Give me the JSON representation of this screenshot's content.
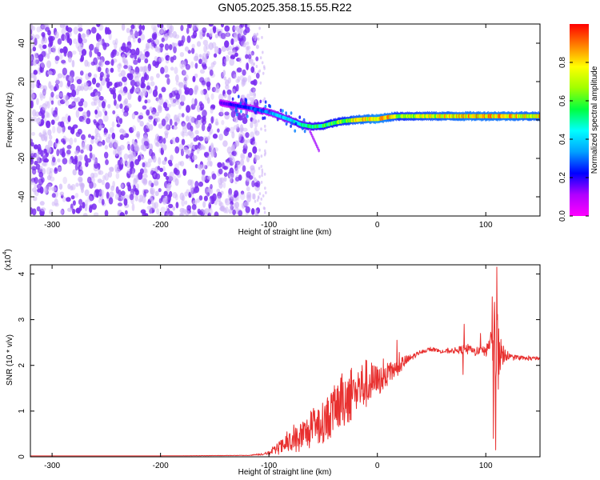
{
  "title": "GN05.2025.358.15.55.R22",
  "colors": {
    "line": "#e8302f",
    "axis": "#000000",
    "colorbar": [
      "#ff00ff",
      "#b000ff",
      "#0000ff",
      "#00a0ff",
      "#00ffff",
      "#00ff40",
      "#a0ff00",
      "#ffff00",
      "#ff8000",
      "#ff0000"
    ],
    "spectro_noise": "#7a2cf0",
    "spectro_noise_light": "#cdb3f7"
  },
  "chart_data": [
    {
      "type": "heatmap",
      "title": "GN05.2025.358.15.55.R22",
      "xlabel": "Height of straight line (km)",
      "ylabel": "Frequency (Hz)",
      "xlim": [
        -320,
        150
      ],
      "ylim": [
        -50,
        50
      ],
      "xticks": [
        -300,
        -200,
        -100,
        0,
        100
      ],
      "xtick_labels": [
        "-300",
        "-200",
        "-100",
        "0",
        "100"
      ],
      "yticks": [
        -40,
        -20,
        0,
        20,
        40
      ],
      "ytick_labels": [
        "-40",
        "-20",
        "0",
        "20",
        "40"
      ],
      "noise_region": [
        -320,
        -110
      ],
      "ridge": {
        "x": [
          -145,
          -130,
          -115,
          -100,
          -90,
          -80,
          -70,
          -60,
          -50,
          -40,
          -30,
          -20,
          -10,
          0,
          10,
          20,
          40,
          60,
          80,
          100,
          120,
          150
        ],
        "freq": [
          9,
          7.5,
          6,
          4,
          2,
          0,
          -2.5,
          -3.5,
          -3,
          -1.5,
          -0.5,
          0,
          0.5,
          0.5,
          1.5,
          2,
          2,
          2,
          2,
          2,
          2,
          2
        ],
        "amp": [
          0.15,
          0.22,
          0.3,
          0.35,
          0.4,
          0.45,
          0.5,
          0.55,
          0.6,
          0.65,
          0.7,
          0.8,
          0.85,
          0.9,
          0.85,
          0.7,
          0.75,
          0.8,
          0.85,
          0.85,
          0.85,
          0.8
        ]
      },
      "colorbar": {
        "label": "Normalized spectral amplitude",
        "range": [
          0,
          1
        ],
        "ticks": [
          "0.0",
          "0.2",
          "0.4",
          "0.6",
          "0.8"
        ]
      }
    },
    {
      "type": "line",
      "xlabel": "Height of straight line (km)",
      "ylabel": "SNR (10 * v/v)",
      "scale_label": "(x10",
      "scale_exp": "4",
      "xlim": [
        -320,
        150
      ],
      "ylim": [
        0,
        4.2
      ],
      "xticks": [
        -300,
        -200,
        -100,
        0,
        100
      ],
      "xtick_labels": [
        "-300",
        "-200",
        "-100",
        "0",
        "100"
      ],
      "yticks": [
        0,
        1,
        2,
        3,
        4
      ],
      "ytick_labels": [
        "0",
        "1",
        "2",
        "3",
        "4"
      ],
      "series": [
        {
          "name": "SNR",
          "x": [
            -320,
            -200,
            -120,
            -110,
            -100,
            -90,
            -80,
            -70,
            -60,
            -50,
            -40,
            -30,
            -20,
            -10,
            0,
            10,
            20,
            30,
            40,
            50,
            60,
            70,
            80,
            90,
            100,
            105,
            108,
            110,
            112,
            115,
            120,
            130,
            150
          ],
          "y": [
            0.02,
            0.02,
            0.03,
            0.05,
            0.08,
            0.2,
            0.3,
            0.45,
            0.6,
            0.75,
            1.0,
            1.3,
            1.45,
            1.6,
            1.65,
            1.8,
            2.0,
            2.15,
            2.3,
            2.35,
            2.3,
            2.32,
            2.35,
            2.3,
            2.3,
            2.6,
            2.2,
            2.1,
            2.3,
            2.2,
            2.2,
            2.15,
            2.15
          ],
          "noise_amp": [
            0,
            0,
            0.005,
            0.02,
            0.04,
            0.15,
            0.25,
            0.35,
            0.4,
            0.45,
            0.55,
            0.65,
            0.6,
            0.55,
            0.35,
            0.25,
            0.2,
            0.08,
            0.04,
            0.04,
            0.04,
            0.06,
            0.1,
            0.1,
            0.12,
            0.25,
            1.2,
            1.6,
            0.9,
            0.2,
            0.08,
            0.05,
            0.04
          ],
          "spikes": [
            {
              "x": 80,
              "y": 2.9
            },
            {
              "x": 79,
              "y": 1.8
            },
            {
              "x": 106,
              "y": 3.5
            },
            {
              "x": 107,
              "y": 0.4
            },
            {
              "x": 110,
              "y": 4.15
            },
            {
              "x": 109,
              "y": 0.15
            },
            {
              "x": 112,
              "y": 2.8
            },
            {
              "x": 95,
              "y": 2.7
            },
            {
              "x": 18,
              "y": 2.55
            }
          ]
        }
      ]
    }
  ]
}
